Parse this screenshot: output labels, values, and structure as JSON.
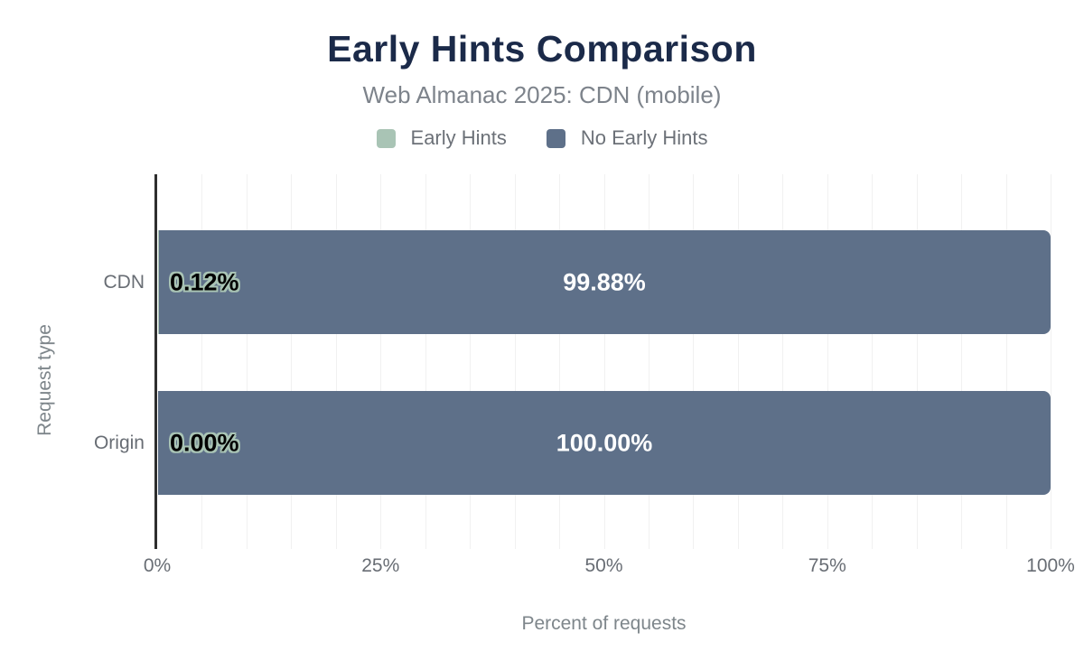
{
  "chart_data": {
    "type": "bar",
    "orientation": "horizontal",
    "stacked": true,
    "title": "Early Hints Comparison",
    "subtitle": "Web Almanac 2025: CDN (mobile)",
    "xlabel": "Percent of requests",
    "ylabel": "Request type",
    "categories": [
      "CDN",
      "Origin"
    ],
    "series": [
      {
        "name": "Early Hints",
        "color": "#a9c4b5",
        "values": [
          0.12,
          0.0
        ],
        "labels": [
          "0.12%",
          "0.00%"
        ]
      },
      {
        "name": "No Early Hints",
        "color": "#5e7089",
        "values": [
          99.88,
          100.0
        ],
        "labels": [
          "99.88%",
          "100.00%"
        ]
      }
    ],
    "x_ticks": [
      {
        "label": "0%",
        "value": 0
      },
      {
        "label": "25%",
        "value": 25
      },
      {
        "label": "50%",
        "value": 50
      },
      {
        "label": "75%",
        "value": 75
      },
      {
        "label": "100%",
        "value": 100
      }
    ],
    "xlim": [
      0,
      100
    ],
    "grid_step_pct": 5,
    "grid": "minor vertical gridlines every 5%",
    "legend_position": "top"
  },
  "colors": {
    "title": "#1b2a49",
    "subtitle": "#7d838b",
    "axis_text": "#686d74",
    "axis_title": "#7e868b",
    "legend_text": "#6c7178",
    "axis_line": "#2e2e2e",
    "gridline": "#f1f1f1",
    "background": "#ffffff",
    "label_dark": "#000000",
    "label_light": "#ffffff"
  }
}
